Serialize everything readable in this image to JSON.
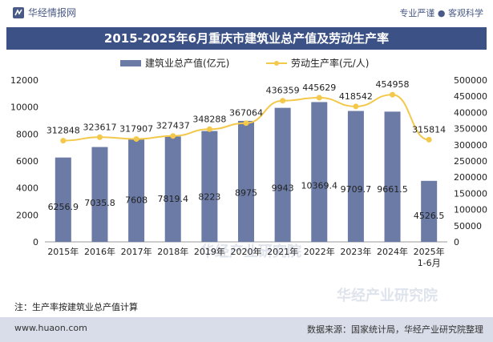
{
  "header": {
    "brand": "华经情报网",
    "slogan": "专业严谨 ● 客观科学"
  },
  "title": "2015-2025年6月重庆市建筑业总产值及劳动生产率",
  "note": "注：生产率按建筑业总产值计算",
  "footer": {
    "website": "www.huaon.com",
    "source": "数据来源：国家统计局，华经产业研究院整理"
  },
  "watermark": "华经产业研究院",
  "colors": {
    "bar": "#6b7ba5",
    "line": "#f3c84b",
    "title_bg": "#3c5185"
  },
  "chart_data": {
    "type": "bar",
    "categories": [
      "2015年",
      "2016年",
      "2017年",
      "2018年",
      "2019年",
      "2020年",
      "2021年",
      "2022年",
      "2023年",
      "2024年",
      "2025年\n1-6月"
    ],
    "series": [
      {
        "name": "建筑业总产值(亿元)",
        "type": "bar",
        "axis": "left",
        "values": [
          6256.9,
          7035.8,
          7608,
          7819.4,
          8223,
          8975,
          9943,
          10369.4,
          9709.7,
          9661.5,
          4526.5
        ],
        "labels": [
          "6256.9",
          "7035.8",
          "7608",
          "7819.4",
          "8223",
          "8975",
          "9943",
          "10369.4",
          "9709.7",
          "9661.5",
          "4526.5"
        ]
      },
      {
        "name": "劳动生产率(元/人)",
        "type": "line",
        "axis": "right",
        "values": [
          312848,
          323617,
          317907,
          327437,
          348288,
          367064,
          436359,
          445629,
          418542,
          454958,
          315814
        ],
        "labels": [
          "312848",
          "323617",
          "317907",
          "327437",
          "348288",
          "367064",
          "436359",
          "445629",
          "418542",
          "454958",
          "315814"
        ]
      }
    ],
    "y_left": {
      "min": 0,
      "max": 12000,
      "ticks": [
        "0",
        "2000",
        "4000",
        "6000",
        "8000",
        "10000",
        "12000"
      ]
    },
    "y_right": {
      "min": 0,
      "max": 500000,
      "ticks": [
        "0",
        "50000",
        "100000",
        "150000",
        "200000",
        "250000",
        "300000",
        "350000",
        "400000",
        "450000",
        "500000"
      ]
    },
    "legend_position": "top",
    "grid": false
  }
}
